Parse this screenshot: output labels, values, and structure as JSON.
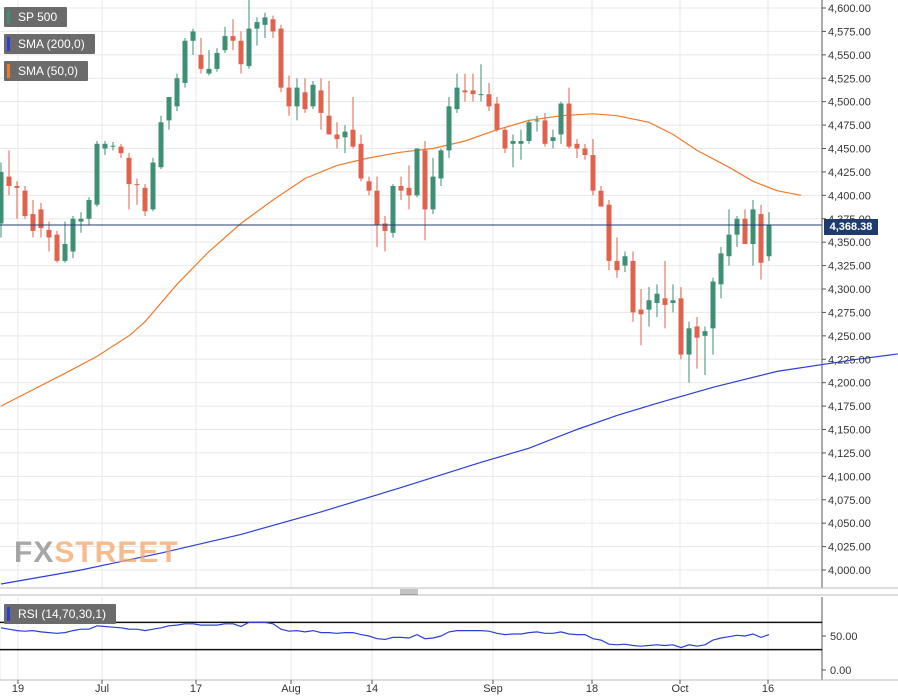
{
  "chart_data": [
    {
      "type": "candlestick",
      "title": "SP 500",
      "legend": [
        {
          "label": "SP 500",
          "color": "#3d8f76"
        },
        {
          "label": "SMA (200,0)",
          "color": "#2b3fd6"
        },
        {
          "label": "SMA (50,0)",
          "color": "#f07a2a"
        }
      ],
      "last_price_label": "4,368.38",
      "last_price": 4368.38,
      "ylim": [
        3980,
        4610
      ],
      "y_ticks": [
        "4,600.00",
        "4,575.00",
        "4,550.00",
        "4,525.00",
        "4,500.00",
        "4,475.00",
        "4,450.00",
        "4,425.00",
        "4,400.00",
        "4,375.00",
        "4,350.00",
        "4,325.00",
        "4,300.00",
        "4,275.00",
        "4,250.00",
        "4,225.00",
        "4,200.00",
        "4,175.00",
        "4,150.00",
        "4,125.00",
        "4,100.00",
        "4,075.00",
        "4,050.00",
        "4,025.00",
        "4,000.00"
      ],
      "x_ticks": [
        "19",
        "Jul",
        "17",
        "Aug",
        "14",
        "Sep",
        "18",
        "Oct",
        "16"
      ],
      "candles": [
        {
          "o": 4370,
          "h": 4435,
          "l": 4355,
          "c": 4425
        },
        {
          "o": 4420,
          "h": 4448,
          "l": 4400,
          "c": 4410
        },
        {
          "o": 4410,
          "h": 4415,
          "l": 4375,
          "c": 4408
        },
        {
          "o": 4405,
          "h": 4410,
          "l": 4375,
          "c": 4378
        },
        {
          "o": 4380,
          "h": 4395,
          "l": 4355,
          "c": 4362
        },
        {
          "o": 4385,
          "h": 4392,
          "l": 4355,
          "c": 4365
        },
        {
          "o": 4363,
          "h": 4372,
          "l": 4340,
          "c": 4355
        },
        {
          "o": 4358,
          "h": 4362,
          "l": 4328,
          "c": 4330
        },
        {
          "o": 4330,
          "h": 4372,
          "l": 4328,
          "c": 4348
        },
        {
          "o": 4340,
          "h": 4378,
          "l": 4333,
          "c": 4375
        },
        {
          "o": 4372,
          "h": 4382,
          "l": 4360,
          "c": 4375
        },
        {
          "o": 4375,
          "h": 4398,
          "l": 4368,
          "c": 4395
        },
        {
          "o": 4390,
          "h": 4458,
          "l": 4388,
          "c": 4455
        },
        {
          "o": 4450,
          "h": 4458,
          "l": 4443,
          "c": 4455
        },
        {
          "o": 4452,
          "h": 4457,
          "l": 4448,
          "c": 4453
        },
        {
          "o": 4452,
          "h": 4455,
          "l": 4440,
          "c": 4445
        },
        {
          "o": 4440,
          "h": 4445,
          "l": 4385,
          "c": 4412
        },
        {
          "o": 4412,
          "h": 4418,
          "l": 4390,
          "c": 4411
        },
        {
          "o": 4408,
          "h": 4412,
          "l": 4378,
          "c": 4383
        },
        {
          "o": 4385,
          "h": 4440,
          "l": 4383,
          "c": 4435
        },
        {
          "o": 4430,
          "h": 4485,
          "l": 4428,
          "c": 4478
        },
        {
          "o": 4480,
          "h": 4505,
          "l": 4470,
          "c": 4505
        },
        {
          "o": 4495,
          "h": 4530,
          "l": 4490,
          "c": 4525
        },
        {
          "o": 4520,
          "h": 4568,
          "l": 4515,
          "c": 4565
        },
        {
          "o": 4565,
          "h": 4578,
          "l": 4550,
          "c": 4575
        },
        {
          "o": 4550,
          "h": 4568,
          "l": 4530,
          "c": 4535
        },
        {
          "o": 4530,
          "h": 4555,
          "l": 4528,
          "c": 4535
        },
        {
          "o": 4535,
          "h": 4557,
          "l": 4532,
          "c": 4552
        },
        {
          "o": 4555,
          "h": 4580,
          "l": 4552,
          "c": 4570
        },
        {
          "o": 4570,
          "h": 4588,
          "l": 4555,
          "c": 4565
        },
        {
          "o": 4565,
          "h": 4575,
          "l": 4530,
          "c": 4540
        },
        {
          "o": 4538,
          "h": 4610,
          "l": 4535,
          "c": 4578
        },
        {
          "o": 4578,
          "h": 4590,
          "l": 4560,
          "c": 4585
        },
        {
          "o": 4582,
          "h": 4595,
          "l": 4568,
          "c": 4590
        },
        {
          "o": 4588,
          "h": 4592,
          "l": 4568,
          "c": 4575
        },
        {
          "o": 4578,
          "h": 4582,
          "l": 4510,
          "c": 4515
        },
        {
          "o": 4515,
          "h": 4528,
          "l": 4485,
          "c": 4495
        },
        {
          "o": 4495,
          "h": 4525,
          "l": 4480,
          "c": 4515
        },
        {
          "o": 4510,
          "h": 4525,
          "l": 4488,
          "c": 4492
        },
        {
          "o": 4495,
          "h": 4522,
          "l": 4492,
          "c": 4518
        },
        {
          "o": 4512,
          "h": 4525,
          "l": 4470,
          "c": 4488
        },
        {
          "o": 4485,
          "h": 4522,
          "l": 4465,
          "c": 4465
        },
        {
          "o": 4465,
          "h": 4478,
          "l": 4450,
          "c": 4460
        },
        {
          "o": 4462,
          "h": 4475,
          "l": 4445,
          "c": 4468
        },
        {
          "o": 4470,
          "h": 4505,
          "l": 4450,
          "c": 4452
        },
        {
          "o": 4455,
          "h": 4465,
          "l": 4415,
          "c": 4418
        },
        {
          "o": 4415,
          "h": 4420,
          "l": 4400,
          "c": 4405
        },
        {
          "o": 4405,
          "h": 4420,
          "l": 4345,
          "c": 4368
        },
        {
          "o": 4370,
          "h": 4378,
          "l": 4340,
          "c": 4362
        },
        {
          "o": 4360,
          "h": 4412,
          "l": 4355,
          "c": 4410
        },
        {
          "o": 4410,
          "h": 4420,
          "l": 4395,
          "c": 4405
        },
        {
          "o": 4408,
          "h": 4432,
          "l": 4385,
          "c": 4400
        },
        {
          "o": 4400,
          "h": 4448,
          "l": 4398,
          "c": 4450
        },
        {
          "o": 4448,
          "h": 4458,
          "l": 4352,
          "c": 4385
        },
        {
          "o": 4385,
          "h": 4440,
          "l": 4380,
          "c": 4420
        },
        {
          "o": 4418,
          "h": 4450,
          "l": 4410,
          "c": 4448
        },
        {
          "o": 4448,
          "h": 4505,
          "l": 4440,
          "c": 4495
        },
        {
          "o": 4492,
          "h": 4530,
          "l": 4488,
          "c": 4515
        },
        {
          "o": 4512,
          "h": 4530,
          "l": 4500,
          "c": 4510
        },
        {
          "o": 4512,
          "h": 4530,
          "l": 4500,
          "c": 4508
        },
        {
          "o": 4508,
          "h": 4540,
          "l": 4500,
          "c": 4508
        },
        {
          "o": 4508,
          "h": 4520,
          "l": 4490,
          "c": 4495
        },
        {
          "o": 4498,
          "h": 4505,
          "l": 4468,
          "c": 4470
        },
        {
          "o": 4470,
          "h": 4472,
          "l": 4445,
          "c": 4450
        },
        {
          "o": 4455,
          "h": 4465,
          "l": 4430,
          "c": 4458
        },
        {
          "o": 4455,
          "h": 4470,
          "l": 4438,
          "c": 4458
        },
        {
          "o": 4458,
          "h": 4480,
          "l": 4455,
          "c": 4478
        },
        {
          "o": 4480,
          "h": 4485,
          "l": 4468,
          "c": 4480
        },
        {
          "o": 4480,
          "h": 4488,
          "l": 4452,
          "c": 4455
        },
        {
          "o": 4458,
          "h": 4470,
          "l": 4450,
          "c": 4462
        },
        {
          "o": 4465,
          "h": 4500,
          "l": 4455,
          "c": 4498
        },
        {
          "o": 4498,
          "h": 4515,
          "l": 4450,
          "c": 4452
        },
        {
          "o": 4455,
          "h": 4460,
          "l": 4440,
          "c": 4450
        },
        {
          "o": 4450,
          "h": 4455,
          "l": 4438,
          "c": 4443
        },
        {
          "o": 4443,
          "h": 4460,
          "l": 4400,
          "c": 4405
        },
        {
          "o": 4405,
          "h": 4410,
          "l": 4390,
          "c": 4388
        },
        {
          "o": 4390,
          "h": 4395,
          "l": 4320,
          "c": 4330
        },
        {
          "o": 4330,
          "h": 4355,
          "l": 4312,
          "c": 4320
        },
        {
          "o": 4325,
          "h": 4340,
          "l": 4318,
          "c": 4335
        },
        {
          "o": 4330,
          "h": 4340,
          "l": 4265,
          "c": 4275
        },
        {
          "o": 4278,
          "h": 4300,
          "l": 4240,
          "c": 4273
        },
        {
          "o": 4278,
          "h": 4302,
          "l": 4260,
          "c": 4288
        },
        {
          "o": 4285,
          "h": 4305,
          "l": 4270,
          "c": 4295
        },
        {
          "o": 4290,
          "h": 4330,
          "l": 4258,
          "c": 4283
        },
        {
          "o": 4285,
          "h": 4305,
          "l": 4275,
          "c": 4288
        },
        {
          "o": 4290,
          "h": 4302,
          "l": 4225,
          "c": 4230
        },
        {
          "o": 4230,
          "h": 4265,
          "l": 4200,
          "c": 4258
        },
        {
          "o": 4260,
          "h": 4270,
          "l": 4215,
          "c": 4248
        },
        {
          "o": 4250,
          "h": 4260,
          "l": 4208,
          "c": 4255
        },
        {
          "o": 4258,
          "h": 4312,
          "l": 4230,
          "c": 4308
        },
        {
          "o": 4305,
          "h": 4345,
          "l": 4290,
          "c": 4338
        },
        {
          "o": 4335,
          "h": 4385,
          "l": 4325,
          "c": 4358
        },
        {
          "o": 4358,
          "h": 4378,
          "l": 4345,
          "c": 4375
        },
        {
          "o": 4375,
          "h": 4385,
          "l": 4350,
          "c": 4348
        },
        {
          "o": 4348,
          "h": 4395,
          "l": 4325,
          "c": 4385
        },
        {
          "o": 4380,
          "h": 4390,
          "l": 4310,
          "c": 4328
        },
        {
          "o": 4335,
          "h": 4382,
          "l": 4330,
          "c": 4368
        }
      ],
      "sma200": [
        [
          0,
          3985
        ],
        [
          10,
          4000
        ],
        [
          20,
          4018
        ],
        [
          30,
          4038
        ],
        [
          40,
          4062
        ],
        [
          50,
          4088
        ],
        [
          60,
          4115
        ],
        [
          66,
          4130
        ],
        [
          72,
          4150
        ],
        [
          77,
          4165
        ],
        [
          82,
          4178
        ],
        [
          89,
          4195
        ],
        [
          97,
          4212
        ],
        [
          107,
          4225
        ],
        [
          116,
          4235
        ]
      ],
      "sma50": [
        [
          0,
          4175
        ],
        [
          8,
          4210
        ],
        [
          12,
          4228
        ],
        [
          16,
          4250
        ],
        [
          18,
          4265
        ],
        [
          22,
          4305
        ],
        [
          26,
          4340
        ],
        [
          30,
          4370
        ],
        [
          34,
          4395
        ],
        [
          38,
          4418
        ],
        [
          42,
          4432
        ],
        [
          46,
          4440
        ],
        [
          50,
          4446
        ],
        [
          54,
          4450
        ],
        [
          58,
          4458
        ],
        [
          62,
          4470
        ],
        [
          66,
          4480
        ],
        [
          70,
          4485
        ],
        [
          74,
          4487
        ],
        [
          77,
          4485
        ],
        [
          81,
          4478
        ],
        [
          84,
          4465
        ],
        [
          87,
          4448
        ],
        [
          91,
          4430
        ],
        [
          94,
          4415
        ],
        [
          97,
          4405
        ],
        [
          100,
          4400
        ]
      ]
    },
    {
      "type": "line",
      "title": "RSI (14,70,30,1)",
      "levels": [
        70,
        30
      ],
      "ylim": [
        0,
        100
      ],
      "y_ticks": [
        "50.00",
        "0.00"
      ],
      "values": [
        62,
        60,
        58,
        57,
        58,
        56,
        55,
        54,
        55,
        58,
        60,
        60,
        65,
        64,
        63,
        62,
        60,
        60,
        58,
        60,
        62,
        65,
        66,
        68,
        68,
        66,
        66,
        66,
        68,
        68,
        64,
        70,
        70,
        70,
        68,
        60,
        57,
        58,
        56,
        58,
        55,
        55,
        54,
        55,
        55,
        52,
        50,
        46,
        45,
        48,
        48,
        47,
        52,
        46,
        47,
        50,
        56,
        58,
        58,
        58,
        58,
        57,
        54,
        52,
        53,
        53,
        55,
        56,
        54,
        54,
        56,
        53,
        52,
        52,
        46,
        44,
        38,
        37,
        38,
        36,
        35,
        36,
        37,
        36,
        37,
        33,
        37,
        35,
        37,
        44,
        47,
        49,
        51,
        50,
        53,
        48,
        52
      ]
    }
  ]
}
